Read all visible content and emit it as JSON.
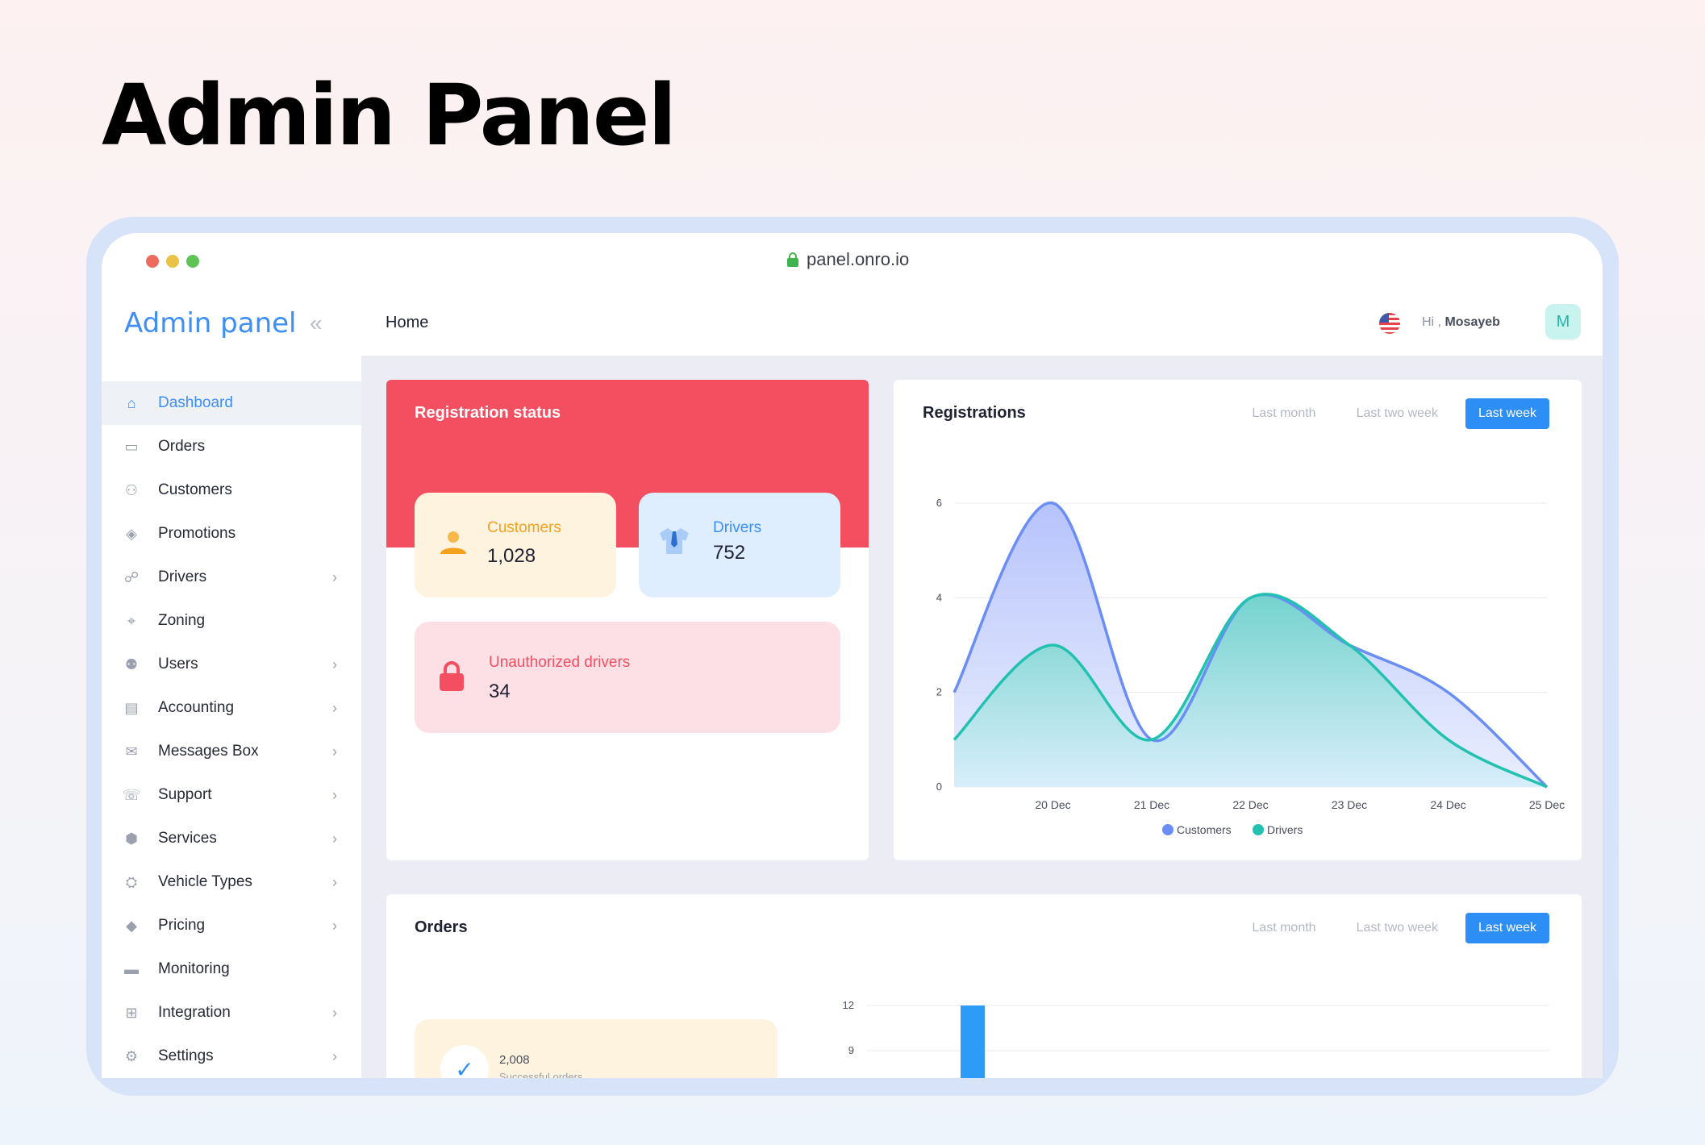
{
  "hero": {
    "title": "Admin Panel"
  },
  "browser": {
    "url": "panel.onro.io"
  },
  "sidebar": {
    "brand": "Admin panel",
    "items": [
      {
        "label": "Dashboard",
        "icon": "home-icon",
        "active": true,
        "chevron": false
      },
      {
        "label": "Orders",
        "icon": "orders-icon",
        "chevron": false
      },
      {
        "label": "Customers",
        "icon": "customers-icon",
        "chevron": false
      },
      {
        "label": "Promotions",
        "icon": "promotions-icon",
        "chevron": false
      },
      {
        "label": "Drivers",
        "icon": "drivers-icon",
        "chevron": true
      },
      {
        "label": "Zoning",
        "icon": "zoning-icon",
        "chevron": false
      },
      {
        "label": "Users",
        "icon": "users-icon",
        "chevron": true
      },
      {
        "label": "Accounting",
        "icon": "accounting-icon",
        "chevron": true
      },
      {
        "label": "Messages Box",
        "icon": "messages-icon",
        "chevron": true
      },
      {
        "label": "Support",
        "icon": "support-icon",
        "chevron": true
      },
      {
        "label": "Services",
        "icon": "services-icon",
        "chevron": true
      },
      {
        "label": "Vehicle Types",
        "icon": "vehicle-icon",
        "chevron": true
      },
      {
        "label": "Pricing",
        "icon": "pricing-icon",
        "chevron": true
      },
      {
        "label": "Monitoring",
        "icon": "monitoring-icon",
        "chevron": false
      },
      {
        "label": "Integration",
        "icon": "integration-icon",
        "chevron": true
      },
      {
        "label": "Settings",
        "icon": "settings-icon",
        "chevron": true
      }
    ]
  },
  "topbar": {
    "page": "Home",
    "greeting_prefix": "Hi ,",
    "user": "Mosayeb",
    "avatar_letter": "M"
  },
  "registration_status": {
    "title": "Registration status",
    "customers": {
      "label": "Customers",
      "value": "1,028"
    },
    "drivers": {
      "label": "Drivers",
      "value": "752"
    },
    "unauthorized": {
      "label": "Unauthorized drivers",
      "value": "34"
    }
  },
  "registrations": {
    "title": "Registrations",
    "filters": [
      "Last month",
      "Last two week",
      "Last week"
    ],
    "active_filter": "Last week"
  },
  "orders": {
    "title": "Orders",
    "filters": [
      "Last month",
      "Last two week",
      "Last week"
    ],
    "active_filter": "Last week",
    "successful_value": "2,008",
    "successful_label": "Successful orders"
  },
  "colors": {
    "accent": "#2d8ff6",
    "customers": "#6a8ef5",
    "drivers": "#22c1b0",
    "danger": "#f44e61"
  },
  "chart_data": [
    {
      "type": "area",
      "title": "Registrations",
      "x": [
        "20 Dec",
        "21 Dec",
        "22 Dec",
        "23 Dec",
        "24 Dec",
        "25 Dec"
      ],
      "series": [
        {
          "name": "Customers",
          "values": [
            6,
            1,
            4,
            3,
            2,
            0
          ],
          "start": 2
        },
        {
          "name": "Drivers",
          "values": [
            3,
            1,
            4,
            3,
            1,
            0
          ],
          "start": 1
        }
      ],
      "yticks": [
        0,
        2,
        4,
        6
      ],
      "ylim": [
        0,
        6
      ],
      "legend": "bottom",
      "grid": true
    },
    {
      "type": "bar",
      "title": "Orders",
      "yticks": [
        9,
        12
      ],
      "values": [
        12
      ]
    }
  ]
}
